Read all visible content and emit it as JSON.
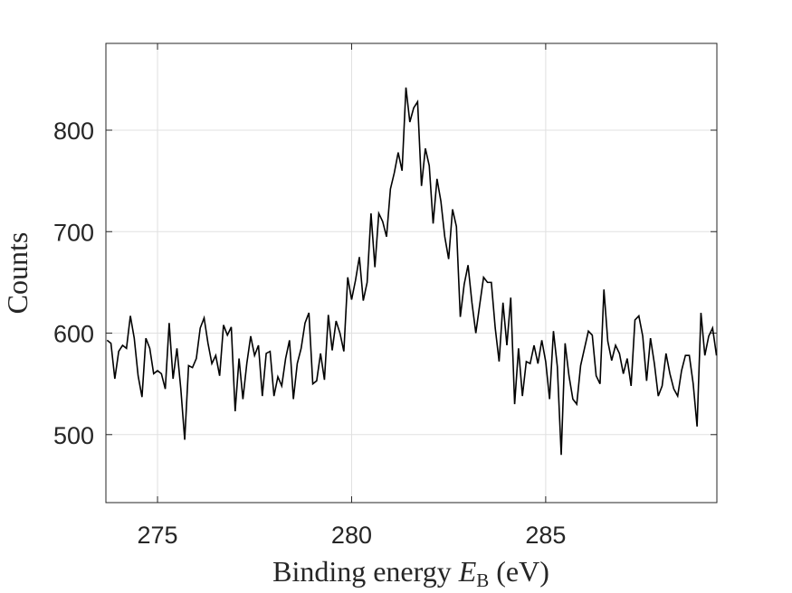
{
  "chart_data": {
    "type": "line",
    "ylabel": "Counts",
    "xlabel": [
      "Binding energy",
      "E",
      "B",
      "(eV)"
    ],
    "color": "#000000",
    "grid": true,
    "xlim": [
      273.67,
      289.41
    ],
    "ylim": [
      433,
      885.5
    ],
    "xticks": [
      275,
      280,
      285
    ],
    "yticks": [
      500,
      600,
      700,
      800
    ],
    "x": [
      273.7,
      273.8,
      273.9,
      274.0,
      274.1,
      274.2,
      274.3,
      274.4,
      274.5,
      274.6,
      274.7,
      274.8,
      274.9,
      275.0,
      275.1,
      275.2,
      275.3,
      275.4,
      275.5,
      275.6,
      275.7,
      275.8,
      275.9,
      276.0,
      276.1,
      276.2,
      276.3,
      276.4,
      276.5,
      276.6,
      276.7,
      276.8,
      276.9,
      277.0,
      277.1,
      277.2,
      277.3,
      277.4,
      277.5,
      277.6,
      277.7,
      277.8,
      277.9,
      278.0,
      278.1,
      278.2,
      278.3,
      278.4,
      278.5,
      278.6,
      278.7,
      278.8,
      278.9,
      279.0,
      279.1,
      279.2,
      279.3,
      279.4,
      279.5,
      279.6,
      279.7,
      279.8,
      279.9,
      280.0,
      280.1,
      280.2,
      280.3,
      280.4,
      280.5,
      280.6,
      280.7,
      280.8,
      280.9,
      281.0,
      281.1,
      281.2,
      281.3,
      281.4,
      281.5,
      281.6,
      281.7,
      281.8,
      281.9,
      282.0,
      282.1,
      282.2,
      282.3,
      282.4,
      282.5,
      282.6,
      282.7,
      282.8,
      282.9,
      283.0,
      283.1,
      283.2,
      283.3,
      283.4,
      283.5,
      283.6,
      283.7,
      283.8,
      283.9,
      284.0,
      284.1,
      284.2,
      284.3,
      284.4,
      284.5,
      284.6,
      284.7,
      284.8,
      284.9,
      285.0,
      285.1,
      285.2,
      285.3,
      285.4,
      285.5,
      285.6,
      285.7,
      285.8,
      285.9,
      286.0,
      286.1,
      286.2,
      286.3,
      286.4,
      286.5,
      286.6,
      286.7,
      286.8,
      286.9,
      287.0,
      287.1,
      287.2,
      287.3,
      287.4,
      287.5,
      287.6,
      287.7,
      287.8,
      287.9,
      288.0,
      288.1,
      288.2,
      288.3,
      288.4,
      288.5,
      288.6,
      288.7,
      288.8,
      288.9,
      289.0,
      289.1,
      289.2,
      289.3,
      289.4
    ],
    "values": [
      593,
      590,
      555,
      582,
      588,
      585,
      617,
      595,
      558,
      537,
      595,
      585,
      560,
      563,
      560,
      545,
      610,
      555,
      585,
      545,
      495,
      568,
      566,
      575,
      605,
      615,
      590,
      570,
      578,
      558,
      608,
      598,
      606,
      523,
      575,
      535,
      570,
      597,
      578,
      588,
      538,
      580,
      582,
      538,
      557,
      548,
      575,
      593,
      535,
      570,
      585,
      610,
      620,
      550,
      553,
      580,
      554,
      618,
      583,
      612,
      600,
      582,
      655,
      633,
      652,
      675,
      632,
      650,
      718,
      665,
      718,
      710,
      695,
      742,
      758,
      778,
      760,
      842,
      808,
      822,
      828,
      745,
      782,
      765,
      708,
      752,
      730,
      695,
      673,
      722,
      705,
      616,
      648,
      667,
      630,
      600,
      628,
      655,
      650,
      650,
      605,
      572,
      630,
      588,
      635,
      530,
      585,
      538,
      572,
      570,
      588,
      570,
      593,
      572,
      535,
      602,
      567,
      480,
      590,
      558,
      535,
      530,
      568,
      585,
      602,
      598,
      558,
      550,
      643,
      592,
      573,
      588,
      580,
      560,
      575,
      548,
      613,
      617,
      597,
      553,
      595,
      570,
      538,
      548,
      580,
      560,
      545,
      538,
      563,
      578,
      578,
      550,
      508,
      620,
      578,
      597,
      605,
      578
    ]
  }
}
